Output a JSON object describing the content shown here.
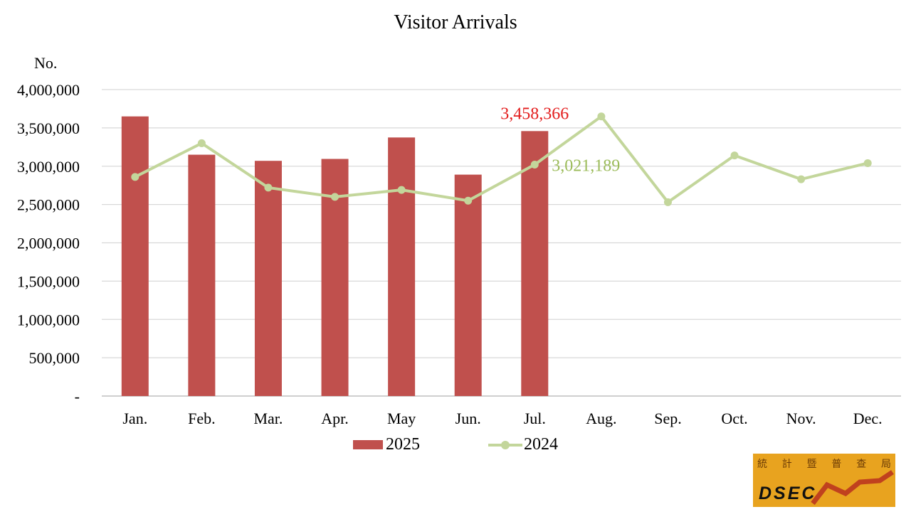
{
  "chart_data": {
    "type": "bar",
    "title": "Visitor Arrivals",
    "ylabel": "No.",
    "xlabel": "",
    "categories": [
      "Jan.",
      "Feb.",
      "Mar.",
      "Apr.",
      "May",
      "Jun.",
      "Jul.",
      "Aug.",
      "Sep.",
      "Oct.",
      "Nov.",
      "Dec."
    ],
    "ylim": [
      0,
      4000000
    ],
    "yticks": [
      0,
      500000,
      1000000,
      1500000,
      2000000,
      2500000,
      3000000,
      3500000,
      4000000
    ],
    "ytick_labels": [
      "-",
      "500,000",
      "1,000,000",
      "1,500,000",
      "2,000,000",
      "2,500,000",
      "3,000,000",
      "3,500,000",
      "4,000,000"
    ],
    "grid": true,
    "legend_position": "bottom",
    "series": [
      {
        "name": "2025",
        "type": "bar",
        "color": "#c0504d",
        "values": [
          3650000,
          3150000,
          3070000,
          3095000,
          3375000,
          2890000,
          3458366,
          null,
          null,
          null,
          null,
          null
        ]
      },
      {
        "name": "2024",
        "type": "line",
        "color": "#c3d69b",
        "values": [
          2860000,
          3300000,
          2720000,
          2600000,
          2690000,
          2550000,
          3021189,
          3650000,
          2530000,
          3140000,
          2830000,
          3040000
        ]
      }
    ],
    "annotations": [
      {
        "series": "2025",
        "category": "Jul.",
        "text": "3,458,366",
        "color": "#e31c1c"
      },
      {
        "series": "2024",
        "category": "Jul.",
        "text": "3,021,189",
        "color": "#9bbb59"
      }
    ]
  },
  "logo": {
    "text": "DSEC",
    "cjk": [
      "統",
      "計",
      "暨",
      "普",
      "查",
      "局"
    ],
    "background": "#e8a31f",
    "bolt_color": "#c0411e"
  }
}
